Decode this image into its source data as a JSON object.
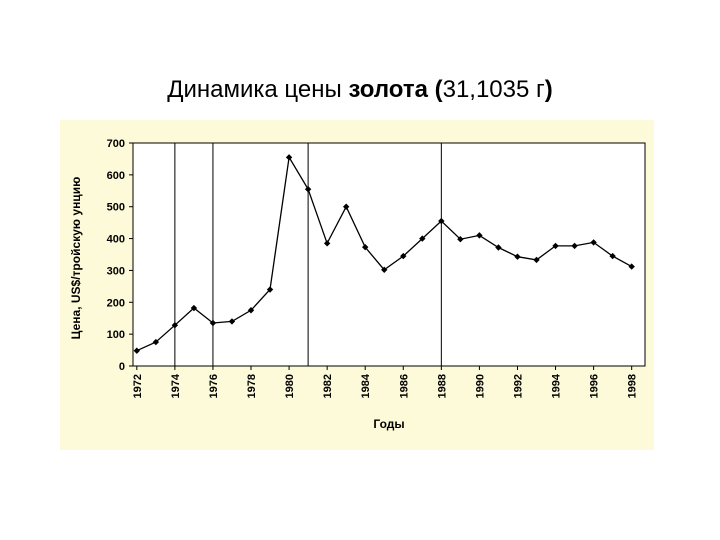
{
  "title": {
    "part1": "Динамика цены ",
    "part2": "золота (",
    "part3": "31,1035 г",
    "part4": ")"
  },
  "chart_data": {
    "type": "line",
    "ylabel": "Цена, US$/тройскую унцию",
    "xlabel": "Годы",
    "ylim": [
      0,
      700
    ],
    "yticks": [
      0,
      100,
      200,
      300,
      400,
      500,
      600,
      700
    ],
    "xlim": [
      1971.8,
      1998.7
    ],
    "xticks": [
      1972,
      1974,
      1976,
      1978,
      1980,
      1982,
      1984,
      1986,
      1988,
      1990,
      1992,
      1994,
      1996,
      1998
    ],
    "vertical_lines": [
      1974,
      1976,
      1981,
      1988
    ],
    "grid": false,
    "series": [
      {
        "color": "#000000",
        "marker": "diamond",
        "x": [
          1972,
          1973,
          1974,
          1975,
          1976,
          1977,
          1978,
          1979,
          1980,
          1981,
          1982,
          1983,
          1984,
          1985,
          1986,
          1987,
          1988,
          1989,
          1990,
          1991,
          1992,
          1993,
          1994,
          1995,
          1996,
          1997,
          1998
        ],
        "values": [
          48,
          75,
          128,
          182,
          135,
          140,
          175,
          240,
          655,
          555,
          385,
          500,
          373,
          302,
          345,
          400,
          455,
          398,
          410,
          372,
          343,
          333,
          377,
          377,
          388,
          345,
          312
        ]
      }
    ]
  }
}
